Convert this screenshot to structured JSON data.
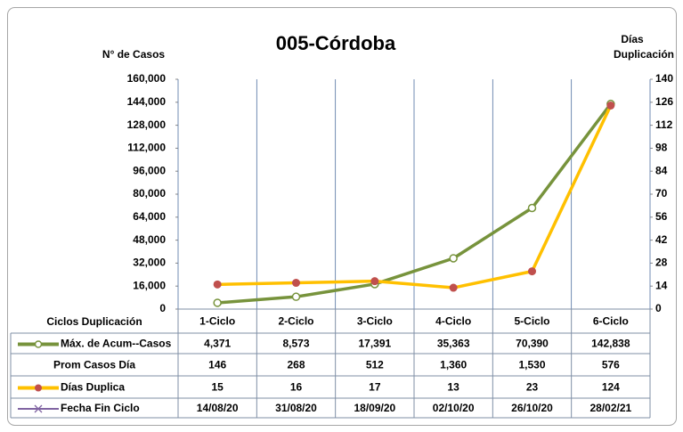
{
  "chart_data": {
    "type": "line",
    "title": "005-Córdoba",
    "y_label": "N° de Casos",
    "y2_label": [
      "Días",
      "Duplicación"
    ],
    "table_header": "Ciclos Duplicación",
    "categories": [
      "1-Ciclo",
      "2-Ciclo",
      "3-Ciclo",
      "4-Ciclo",
      "5-Ciclo",
      "6-Ciclo"
    ],
    "ylim": [
      0,
      160000
    ],
    "yticks": [
      0,
      {
        "value": 16000,
        "label": "16,000"
      },
      {
        "value": 32000,
        "label": "32,000"
      },
      {
        "value": 48000,
        "label": "48,000"
      },
      {
        "value": 64000,
        "label": "64,000"
      },
      {
        "value": 80000,
        "label": "80,000"
      },
      {
        "value": 96000,
        "label": "96,000"
      },
      {
        "value": 112000,
        "label": "112,000"
      },
      {
        "value": 128000,
        "label": "128,000"
      },
      {
        "value": 144000,
        "label": "144,000"
      },
      {
        "value": 160000,
        "label": "160,000"
      }
    ],
    "y2lim": [
      0,
      140
    ],
    "y2ticks": [
      0,
      14,
      28,
      42,
      56,
      70,
      84,
      98,
      112,
      126,
      140
    ],
    "series": [
      {
        "name": "Máx. de Acum--Casos",
        "color": "#77933c",
        "marker": "circle-open",
        "values": [
          4371,
          8573,
          17391,
          35363,
          70390,
          142838
        ],
        "value_labels": [
          "4,371",
          "8,573",
          "17,391",
          "35,363",
          "70,390",
          "142,838"
        ]
      },
      {
        "name": "Prom Casos Día",
        "plot": false,
        "values": [
          146,
          268,
          512,
          1360,
          1530,
          576
        ],
        "value_labels": [
          "146",
          "268",
          "512",
          "1,360",
          "1,530",
          "576"
        ]
      },
      {
        "name": "Días Duplica",
        "color": "#ffc000",
        "marker_color": "#c0504d",
        "marker": "circle",
        "axis": "y2",
        "values": [
          15,
          16,
          17,
          13,
          23,
          124
        ]
      },
      {
        "name": "Fecha Fin Ciclo",
        "color": "#8064a2",
        "marker": "x",
        "plot": false,
        "values": [
          "14/08/20",
          "31/08/20",
          "18/09/20",
          "02/10/20",
          "26/10/20",
          "28/02/21"
        ]
      }
    ]
  }
}
